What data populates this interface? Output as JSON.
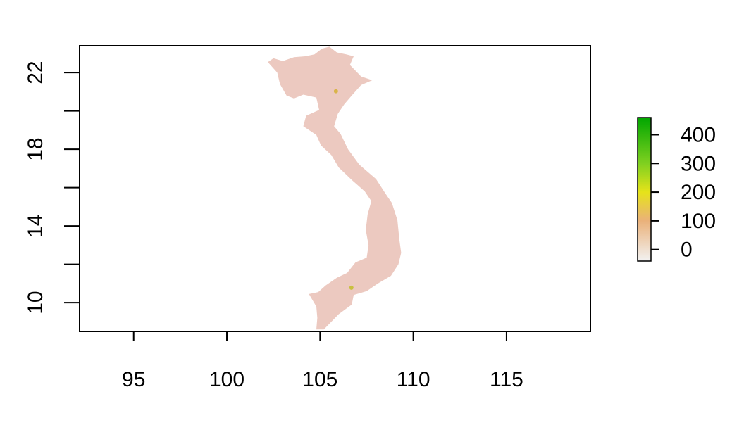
{
  "chart_data": {
    "type": "heatmap",
    "title": "",
    "xlabel": "",
    "ylabel": "",
    "xlim": [
      92.1,
      119.5
    ],
    "ylim": [
      8.5,
      23.4
    ],
    "x_ticks": [
      95,
      100,
      105,
      110,
      115
    ],
    "x_tick_labels": [
      "95",
      "100",
      "105",
      "110",
      "115"
    ],
    "y_ticks": [
      10,
      12,
      14,
      16,
      18,
      20,
      22
    ],
    "y_tick_labels": [
      "10",
      "",
      "14",
      "",
      "18",
      "",
      "22"
    ],
    "grid": false,
    "legend": {
      "placement": "right",
      "range": [
        -40,
        460
      ],
      "ticks": [
        0,
        100,
        200,
        300,
        400
      ],
      "tick_labels": [
        "0",
        "100",
        "200",
        "300",
        "400"
      ],
      "color_stops": [
        {
          "value": -40,
          "color": "#f2f2f2"
        },
        {
          "value": 100,
          "color": "#eab17a"
        },
        {
          "value": 200,
          "color": "#e6e31a"
        },
        {
          "value": 300,
          "color": "#7fd020"
        },
        {
          "value": 460,
          "color": "#00a600"
        }
      ]
    },
    "background_value": 0,
    "background_color": "#ecc9c0",
    "hotspots": [
      {
        "lon": 105.85,
        "lat": 21.03,
        "value": 220,
        "color": "#d9b44a"
      },
      {
        "lon": 106.68,
        "lat": 10.78,
        "value": 260,
        "color": "#c8c040"
      }
    ],
    "region_outline": [
      [
        102.2,
        22.55
      ],
      [
        102.5,
        22.75
      ],
      [
        103.0,
        22.6
      ],
      [
        103.6,
        22.8
      ],
      [
        104.2,
        22.85
      ],
      [
        104.7,
        22.95
      ],
      [
        105.1,
        23.25
      ],
      [
        105.5,
        23.35
      ],
      [
        105.9,
        23.05
      ],
      [
        106.4,
        22.95
      ],
      [
        106.8,
        22.85
      ],
      [
        106.6,
        22.4
      ],
      [
        107.2,
        21.8
      ],
      [
        107.8,
        21.6
      ],
      [
        107.2,
        21.35
      ],
      [
        106.7,
        20.8
      ],
      [
        106.3,
        20.35
      ],
      [
        105.95,
        19.85
      ],
      [
        105.75,
        19.2
      ],
      [
        106.1,
        18.8
      ],
      [
        106.5,
        18.0
      ],
      [
        107.1,
        17.2
      ],
      [
        108.0,
        16.45
      ],
      [
        108.5,
        15.7
      ],
      [
        108.85,
        15.2
      ],
      [
        109.15,
        14.3
      ],
      [
        109.25,
        13.3
      ],
      [
        109.35,
        12.6
      ],
      [
        109.2,
        12.0
      ],
      [
        108.8,
        11.4
      ],
      [
        108.1,
        11.0
      ],
      [
        107.5,
        10.6
      ],
      [
        106.8,
        10.4
      ],
      [
        106.7,
        9.9
      ],
      [
        106.0,
        9.4
      ],
      [
        105.6,
        9.0
      ],
      [
        105.2,
        8.6
      ],
      [
        104.8,
        8.6
      ],
      [
        104.85,
        9.2
      ],
      [
        104.8,
        9.8
      ],
      [
        104.4,
        10.45
      ],
      [
        104.9,
        10.55
      ],
      [
        105.3,
        10.9
      ],
      [
        105.9,
        11.3
      ],
      [
        106.45,
        11.55
      ],
      [
        106.9,
        12.1
      ],
      [
        107.5,
        12.35
      ],
      [
        107.6,
        13.0
      ],
      [
        107.45,
        13.8
      ],
      [
        107.55,
        14.6
      ],
      [
        107.75,
        15.3
      ],
      [
        107.4,
        15.8
      ],
      [
        106.7,
        16.4
      ],
      [
        106.0,
        17.05
      ],
      [
        105.6,
        17.7
      ],
      [
        105.05,
        18.2
      ],
      [
        104.8,
        18.75
      ],
      [
        104.1,
        19.2
      ],
      [
        104.25,
        19.75
      ],
      [
        104.95,
        20.05
      ],
      [
        104.8,
        20.7
      ],
      [
        104.1,
        20.85
      ],
      [
        103.6,
        20.65
      ],
      [
        103.2,
        20.8
      ],
      [
        102.85,
        21.4
      ],
      [
        102.7,
        22.0
      ],
      [
        102.2,
        22.55
      ]
    ]
  }
}
